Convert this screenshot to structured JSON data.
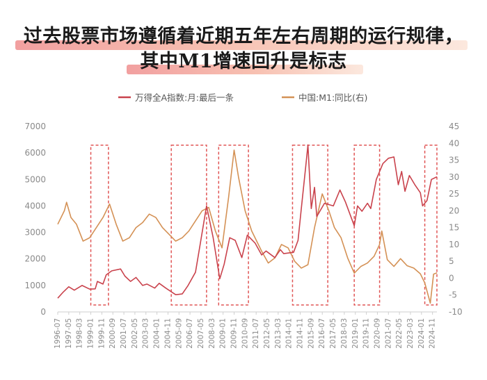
{
  "title": {
    "line1": "过去股票市场遵循着近期五年左右周期的运行规律，",
    "line2": "其中M1增速回升是标志"
  },
  "colors": {
    "wind_a": "#c9424c",
    "m1": "#d49155",
    "box": "#e05555",
    "axis": "#cfcfcf"
  },
  "chart_data": {
    "type": "line",
    "legend_position": "top-center",
    "grid": false,
    "y_left": {
      "min": 0,
      "max": 7000,
      "ticks": [
        "0",
        "1000",
        "2000",
        "3000",
        "4000",
        "5000",
        "6000",
        "7000"
      ]
    },
    "y_right": {
      "min": -10,
      "max": 45,
      "ticks": [
        "-10",
        "-5",
        "0",
        "5",
        "10",
        "15",
        "20",
        "25",
        "30",
        "35",
        "40",
        "45"
      ]
    },
    "x_range": [
      "1996-07",
      "2025-03"
    ],
    "x_ticks": [
      "1996-07",
      "1997-05",
      "1998-03",
      "1999-01",
      "1999-11",
      "2000-09",
      "2001-07",
      "2002-05",
      "2003-03",
      "2004-01",
      "2004-11",
      "2005-09",
      "2006-07",
      "2007-05",
      "2008-03",
      "2009-01",
      "2009-11",
      "2010-09",
      "2011-07",
      "2012-05",
      "2013-03",
      "2014-01",
      "2014-11",
      "2015-09",
      "2016-07",
      "2017-05",
      "2018-03",
      "2019-01",
      "2019-11",
      "2020-09",
      "2021-07",
      "2022-05",
      "2023-03",
      "2024-01",
      "2024-11"
    ],
    "series": [
      {
        "name": "万得全A指数:月:最后一条",
        "axis": "left",
        "points": [
          [
            "1996-07",
            520
          ],
          [
            "1996-12",
            750
          ],
          [
            "1997-05",
            950
          ],
          [
            "1997-10",
            820
          ],
          [
            "1998-05",
            1000
          ],
          [
            "1998-12",
            860
          ],
          [
            "1999-05",
            870
          ],
          [
            "1999-07",
            1150
          ],
          [
            "1999-12",
            1050
          ],
          [
            "2000-03",
            1400
          ],
          [
            "2000-08",
            1550
          ],
          [
            "2001-04",
            1620
          ],
          [
            "2001-08",
            1350
          ],
          [
            "2002-01",
            1150
          ],
          [
            "2002-06",
            1300
          ],
          [
            "2002-12",
            1000
          ],
          [
            "2003-04",
            1050
          ],
          [
            "2003-11",
            900
          ],
          [
            "2004-03",
            1080
          ],
          [
            "2004-09",
            900
          ],
          [
            "2005-06",
            650
          ],
          [
            "2005-12",
            680
          ],
          [
            "2006-05",
            980
          ],
          [
            "2006-12",
            1500
          ],
          [
            "2007-04",
            2500
          ],
          [
            "2007-10",
            4000
          ],
          [
            "2008-04",
            2800
          ],
          [
            "2008-10",
            1250
          ],
          [
            "2009-02",
            1800
          ],
          [
            "2009-07",
            2800
          ],
          [
            "2009-12",
            2700
          ],
          [
            "2010-06",
            2050
          ],
          [
            "2010-11",
            2900
          ],
          [
            "2011-06",
            2600
          ],
          [
            "2011-12",
            2150
          ],
          [
            "2012-04",
            2300
          ],
          [
            "2012-12",
            2050
          ],
          [
            "2013-05",
            2350
          ],
          [
            "2013-08",
            2200
          ],
          [
            "2014-05",
            2250
          ],
          [
            "2014-09",
            2700
          ],
          [
            "2014-12",
            3900
          ],
          [
            "2015-04",
            5500
          ],
          [
            "2015-06",
            6300
          ],
          [
            "2015-09",
            3900
          ],
          [
            "2015-12",
            4700
          ],
          [
            "2016-02",
            3600
          ],
          [
            "2016-09",
            4100
          ],
          [
            "2017-05",
            4000
          ],
          [
            "2017-11",
            4600
          ],
          [
            "2018-04",
            4150
          ],
          [
            "2018-12",
            3250
          ],
          [
            "2019-03",
            4000
          ],
          [
            "2019-07",
            3800
          ],
          [
            "2019-12",
            4100
          ],
          [
            "2020-03",
            3900
          ],
          [
            "2020-08",
            5000
          ],
          [
            "2021-02",
            5600
          ],
          [
            "2021-07",
            5800
          ],
          [
            "2021-12",
            5850
          ],
          [
            "2022-04",
            4800
          ],
          [
            "2022-07",
            5300
          ],
          [
            "2022-10",
            4550
          ],
          [
            "2023-02",
            5150
          ],
          [
            "2023-07",
            4800
          ],
          [
            "2023-12",
            4500
          ],
          [
            "2024-02",
            4000
          ],
          [
            "2024-06",
            4200
          ],
          [
            "2024-10",
            5000
          ],
          [
            "2025-03",
            5100
          ]
        ]
      },
      {
        "name": "中国:M1:同比(右)",
        "axis": "right",
        "points": [
          [
            "1996-07",
            16
          ],
          [
            "1997-01",
            20
          ],
          [
            "1997-03",
            22.5
          ],
          [
            "1997-07",
            18
          ],
          [
            "1997-12",
            16
          ],
          [
            "1998-06",
            11
          ],
          [
            "1998-12",
            12
          ],
          [
            "1999-06",
            15
          ],
          [
            "1999-12",
            18
          ],
          [
            "2000-06",
            22
          ],
          [
            "2000-12",
            16
          ],
          [
            "2001-06",
            11
          ],
          [
            "2001-12",
            12
          ],
          [
            "2002-06",
            15
          ],
          [
            "2002-12",
            16.5
          ],
          [
            "2003-06",
            19
          ],
          [
            "2003-12",
            18
          ],
          [
            "2004-06",
            15
          ],
          [
            "2004-12",
            13
          ],
          [
            "2005-06",
            11
          ],
          [
            "2005-12",
            12
          ],
          [
            "2006-06",
            14
          ],
          [
            "2006-12",
            17
          ],
          [
            "2007-06",
            20
          ],
          [
            "2007-12",
            21
          ],
          [
            "2008-06",
            14
          ],
          [
            "2008-12",
            9
          ],
          [
            "2009-06",
            24
          ],
          [
            "2009-11",
            38
          ],
          [
            "2010-03",
            30
          ],
          [
            "2010-09",
            20
          ],
          [
            "2011-03",
            14
          ],
          [
            "2011-12",
            8
          ],
          [
            "2012-06",
            4.5
          ],
          [
            "2012-12",
            6
          ],
          [
            "2013-06",
            10
          ],
          [
            "2013-12",
            9
          ],
          [
            "2014-06",
            5
          ],
          [
            "2014-12",
            3
          ],
          [
            "2015-06",
            4
          ],
          [
            "2015-12",
            15
          ],
          [
            "2016-07",
            25
          ],
          [
            "2017-01",
            20
          ],
          [
            "2017-06",
            15
          ],
          [
            "2017-12",
            12
          ],
          [
            "2018-06",
            6
          ],
          [
            "2018-12",
            1.5
          ],
          [
            "2019-06",
            3.5
          ],
          [
            "2019-12",
            4.5
          ],
          [
            "2020-06",
            6.5
          ],
          [
            "2020-11",
            10
          ],
          [
            "2021-01",
            14
          ],
          [
            "2021-06",
            5.5
          ],
          [
            "2021-12",
            3.5
          ],
          [
            "2022-06",
            5.8
          ],
          [
            "2022-12",
            3.7
          ],
          [
            "2023-06",
            3
          ],
          [
            "2023-12",
            1.3
          ],
          [
            "2024-04",
            -1.4
          ],
          [
            "2024-09",
            -7.4
          ],
          [
            "2024-12",
            1.2
          ],
          [
            "2025-03",
            1.6
          ]
        ]
      }
    ],
    "highlight_periods": [
      [
        "1999-01",
        "2000-05"
      ],
      [
        "2005-02",
        "2007-10"
      ],
      [
        "2008-09",
        "2010-12"
      ],
      [
        "2014-04",
        "2016-12"
      ],
      [
        "2018-12",
        "2020-11"
      ],
      [
        "2024-04",
        "2025-03"
      ]
    ]
  }
}
